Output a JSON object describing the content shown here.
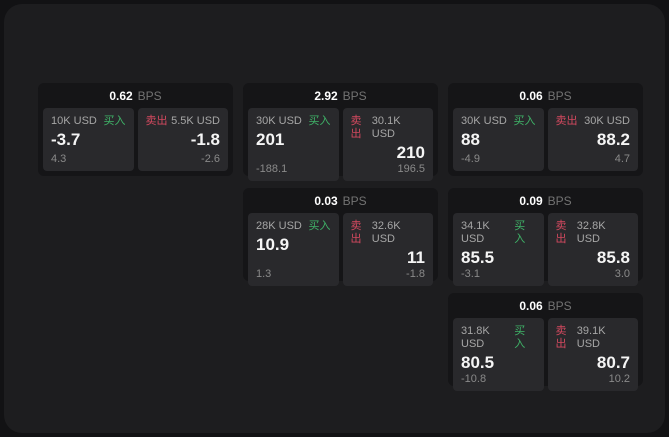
{
  "colors": {
    "buy_accent": "#3fb368",
    "sell_accent": "#d4495f",
    "surface_background": "#1d1d1f",
    "card_background": "#151517",
    "panel_background": "#29292c"
  },
  "cards": [
    {
      "header": {
        "value": "0.62",
        "unit": "BPS"
      },
      "buy": {
        "amount": "10K USD",
        "side_label": "买入",
        "price": "-3.7",
        "change": "4.3"
      },
      "sell": {
        "side_label": "卖出",
        "amount": "5.5K USD",
        "price": "-1.8",
        "change": "-2.6"
      }
    },
    {
      "header": {
        "value": "2.92",
        "unit": "BPS"
      },
      "buy": {
        "amount": "30K USD",
        "side_label": "买入",
        "price": "201",
        "change": "-188.1"
      },
      "sell": {
        "side_label": "卖出",
        "amount": "30.1K USD",
        "price": "210",
        "change": "196.5"
      }
    },
    {
      "header": {
        "value": "0.06",
        "unit": "BPS"
      },
      "buy": {
        "amount": "30K USD",
        "side_label": "买入",
        "price": "88",
        "change": "-4.9"
      },
      "sell": {
        "side_label": "卖出",
        "amount": "30K USD",
        "price": "88.2",
        "change": "4.7"
      }
    },
    {
      "header": {
        "value": "0.03",
        "unit": "BPS"
      },
      "buy": {
        "amount": "28K USD",
        "side_label": "买入",
        "price": "10.9",
        "change": "1.3"
      },
      "sell": {
        "side_label": "卖出",
        "amount": "32.6K USD",
        "price": "11",
        "change": "-1.8"
      }
    },
    {
      "header": {
        "value": "0.09",
        "unit": "BPS"
      },
      "buy": {
        "amount": "34.1K USD",
        "side_label": "买入",
        "price": "85.5",
        "change": "-3.1"
      },
      "sell": {
        "side_label": "卖出",
        "amount": "32.8K USD",
        "price": "85.8",
        "change": "3.0"
      }
    },
    {
      "header": {
        "value": "0.06",
        "unit": "BPS"
      },
      "buy": {
        "amount": "31.8K USD",
        "side_label": "买入",
        "price": "80.5",
        "change": "-10.8"
      },
      "sell": {
        "side_label": "卖出",
        "amount": "39.1K USD",
        "price": "80.7",
        "change": "10.2"
      }
    }
  ]
}
